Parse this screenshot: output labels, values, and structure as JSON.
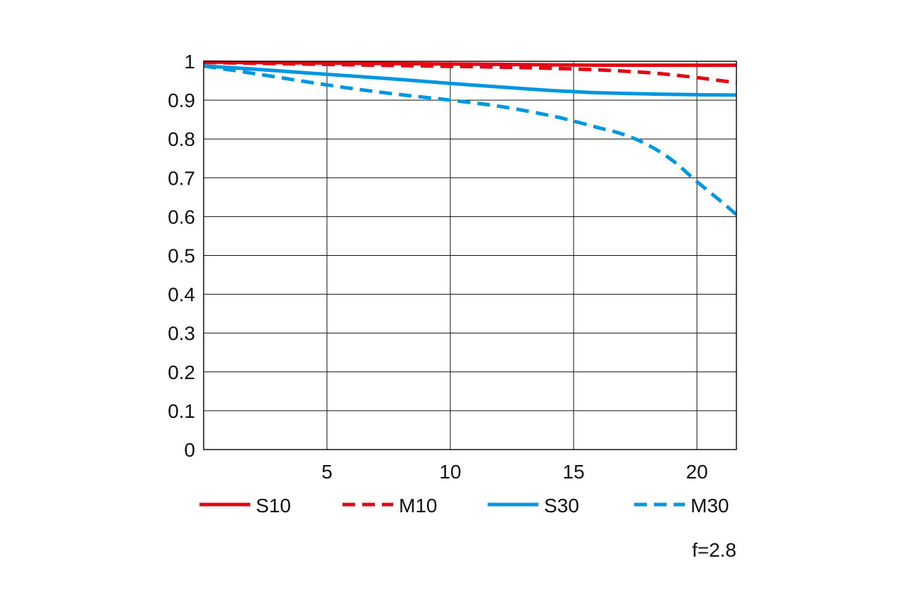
{
  "chart_data": {
    "type": "line",
    "title": "",
    "xlabel": "",
    "ylabel": "",
    "xlim": [
      0,
      21.6
    ],
    "ylim": [
      0,
      1
    ],
    "x_ticks": [
      5,
      10,
      15,
      20
    ],
    "y_ticks": [
      0,
      0.1,
      0.2,
      0.3,
      0.4,
      0.5,
      0.6,
      0.7,
      0.8,
      0.9,
      1
    ],
    "y_tick_labels": [
      "0",
      "0.1",
      "0.2",
      "0.3",
      "0.4",
      "0.5",
      "0.6",
      "0.7",
      "0.8",
      "0.9",
      "1"
    ],
    "x_tick_labels": [
      "5",
      "10",
      "15",
      "20"
    ],
    "grid": true,
    "legend_position": "bottom",
    "annotation": "f=2.8",
    "series": [
      {
        "name": "S10",
        "color": "#e30613",
        "dash": "solid",
        "x": [
          0,
          2,
          4,
          6,
          8,
          10,
          12,
          14,
          16,
          18,
          20,
          21.6
        ],
        "y": [
          0.998,
          0.997,
          0.996,
          0.995,
          0.994,
          0.993,
          0.992,
          0.991,
          0.99,
          0.99,
          0.99,
          0.99
        ]
      },
      {
        "name": "M10",
        "color": "#e30613",
        "dash": "dashed",
        "x": [
          0,
          2,
          4,
          6,
          8,
          10,
          12,
          14,
          16,
          18,
          19,
          20,
          21,
          21.6
        ],
        "y": [
          0.997,
          0.995,
          0.993,
          0.991,
          0.989,
          0.987,
          0.985,
          0.982,
          0.978,
          0.971,
          0.965,
          0.958,
          0.95,
          0.945
        ]
      },
      {
        "name": "S30",
        "color": "#0097e0",
        "dash": "solid",
        "x": [
          0,
          2,
          4,
          6,
          8,
          10,
          12,
          14,
          15,
          16,
          18,
          20,
          21.6
        ],
        "y": [
          0.988,
          0.98,
          0.971,
          0.962,
          0.953,
          0.943,
          0.934,
          0.925,
          0.922,
          0.919,
          0.916,
          0.914,
          0.913
        ]
      },
      {
        "name": "M30",
        "color": "#0097e0",
        "dash": "dashed",
        "x": [
          0,
          2,
          4,
          6,
          8,
          10,
          12,
          14,
          15,
          16,
          17,
          18,
          19,
          20,
          21,
          21.6
        ],
        "y": [
          0.988,
          0.969,
          0.949,
          0.93,
          0.914,
          0.9,
          0.884,
          0.861,
          0.846,
          0.829,
          0.812,
          0.785,
          0.745,
          0.69,
          0.638,
          0.605
        ]
      }
    ]
  }
}
